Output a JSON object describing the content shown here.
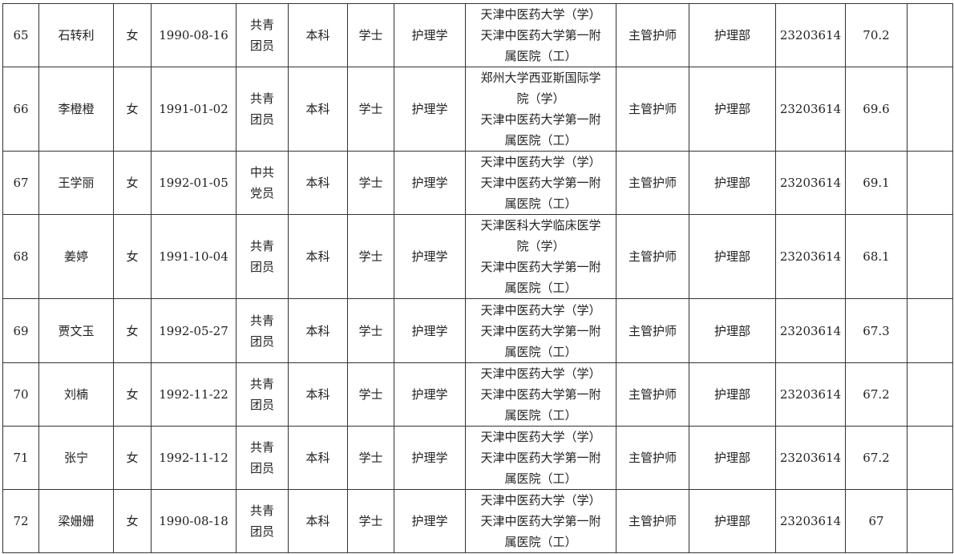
{
  "rows": [
    {
      "no": "65",
      "name": "石转利",
      "gender": "女",
      "dob": "1990-08-16",
      "party": [
        "共青",
        "团员"
      ],
      "edu": "本科",
      "degree": "学士",
      "major": "护理学",
      "school": [
        "天津中医药大学（学）",
        "天津中医药大学第一附",
        "属医院（工）"
      ],
      "title": "主管护师",
      "dept": "护理部",
      "code": "23203614",
      "score": "70.2",
      "extra": ""
    },
    {
      "no": "66",
      "name": "李橙橙",
      "gender": "女",
      "dob": "1991-01-02",
      "party": [
        "共青",
        "团员"
      ],
      "edu": "本科",
      "degree": "学士",
      "major": "护理学",
      "school": [
        "郑州大学西亚斯国际学",
        "院（学）",
        "天津中医药大学第一附",
        "属医院（工）"
      ],
      "title": "主管护师",
      "dept": "护理部",
      "code": "23203614",
      "score": "69.6",
      "extra": ""
    },
    {
      "no": "67",
      "name": "王学丽",
      "gender": "女",
      "dob": "1992-01-05",
      "party": [
        "中共",
        "党员"
      ],
      "edu": "本科",
      "degree": "学士",
      "major": "护理学",
      "school": [
        "天津中医药大学（学）",
        "天津中医药大学第一附",
        "属医院（工）"
      ],
      "title": "主管护师",
      "dept": "护理部",
      "code": "23203614",
      "score": "69.1",
      "extra": ""
    },
    {
      "no": "68",
      "name": "姜婷",
      "gender": "女",
      "dob": "1991-10-04",
      "party": [
        "共青",
        "团员"
      ],
      "edu": "本科",
      "degree": "学士",
      "major": "护理学",
      "school": [
        "天津医科大学临床医学",
        "院（学）",
        "天津中医药大学第一附",
        "属医院（工）"
      ],
      "title": "主管护师",
      "dept": "护理部",
      "code": "23203614",
      "score": "68.1",
      "extra": ""
    },
    {
      "no": "69",
      "name": "贾文玉",
      "gender": "女",
      "dob": "1992-05-27",
      "party": [
        "共青",
        "团员"
      ],
      "edu": "本科",
      "degree": "学士",
      "major": "护理学",
      "school": [
        "天津中医药大学（学）",
        "天津中医药大学第一附",
        "属医院（工）"
      ],
      "title": "主管护师",
      "dept": "护理部",
      "code": "23203614",
      "score": "67.3",
      "extra": ""
    },
    {
      "no": "70",
      "name": "刘楠",
      "gender": "女",
      "dob": "1992-11-22",
      "party": [
        "共青",
        "团员"
      ],
      "edu": "本科",
      "degree": "学士",
      "major": "护理学",
      "school": [
        "天津中医药大学（学）",
        "天津中医药大学第一附",
        "属医院（工）"
      ],
      "title": "主管护师",
      "dept": "护理部",
      "code": "23203614",
      "score": "67.2",
      "extra": ""
    },
    {
      "no": "71",
      "name": "张宁",
      "gender": "女",
      "dob": "1992-11-12",
      "party": [
        "共青",
        "团员"
      ],
      "edu": "本科",
      "degree": "学士",
      "major": "护理学",
      "school": [
        "天津中医药大学（学）",
        "天津中医药大学第一附",
        "属医院（工）"
      ],
      "title": "主管护师",
      "dept": "护理部",
      "code": "23203614",
      "score": "67.2",
      "extra": ""
    },
    {
      "no": "72",
      "name": "梁姗姗",
      "gender": "女",
      "dob": "1990-08-18",
      "party": [
        "共青",
        "团员"
      ],
      "edu": "本科",
      "degree": "学士",
      "major": "护理学",
      "school": [
        "天津中医药大学（学）",
        "天津中医药大学第一附",
        "属医院（工）"
      ],
      "title": "主管护师",
      "dept": "护理部",
      "code": "23203614",
      "score": "67",
      "extra": ""
    }
  ]
}
